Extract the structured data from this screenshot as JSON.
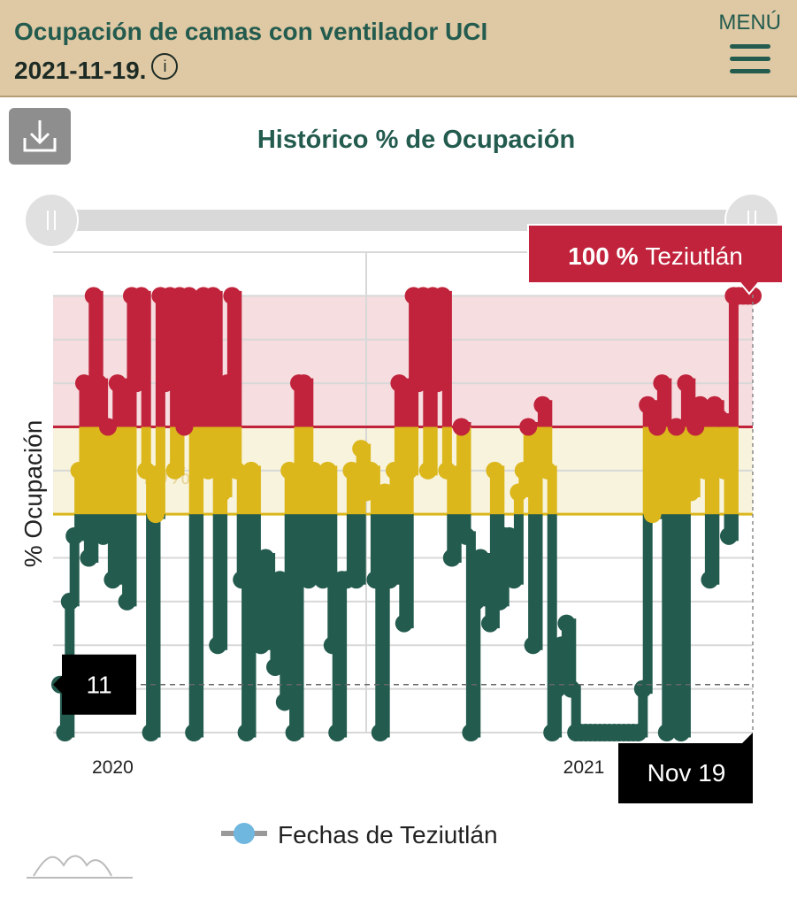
{
  "header": {
    "title": "Ocupación de camas con ventilador UCI",
    "date": "2021-11-19.",
    "info_icon": "info-icon",
    "menu_label": "MENÚ",
    "menu_icon": "hamburger-icon"
  },
  "download_icon": "download-icon",
  "chart_data": {
    "type": "line",
    "title": "Histórico % de Ocupación",
    "ylabel": "% Ocupación",
    "ylim": [
      0,
      110
    ],
    "grid": true,
    "zones": [
      {
        "from": 0,
        "to": 50,
        "color": "#235b4e"
      },
      {
        "from": 50,
        "to": 70,
        "color": "#dbb71c"
      },
      {
        "from": 70,
        "to": 110,
        "color": "#c0233b"
      }
    ],
    "band_fill": {
      "yellow": "#f8f3dc",
      "red": "#f5dde0"
    },
    "band_label": "de 70%",
    "x_ticks": [
      {
        "label": "2020",
        "index": 11
      },
      {
        "label": "2021",
        "index": 133
      }
    ],
    "series": [
      {
        "name": "Fechas de Teziutlán",
        "values": [
          11,
          0,
          30,
          45,
          60,
          80,
          40,
          100,
          80,
          45,
          70,
          35,
          80,
          60,
          30,
          100,
          80,
          100,
          60,
          0,
          50,
          100,
          80,
          100,
          60,
          100,
          70,
          100,
          0,
          80,
          100,
          60,
          100,
          20,
          55,
          80,
          100,
          60,
          35,
          0,
          60,
          35,
          20,
          40,
          30,
          15,
          35,
          7,
          60,
          0,
          80,
          80,
          35,
          60,
          55,
          35,
          60,
          20,
          0,
          35,
          35,
          60,
          35,
          65,
          55,
          60,
          35,
          0,
          55,
          35,
          60,
          80,
          25,
          60,
          100,
          80,
          100,
          60,
          100,
          80,
          100,
          60,
          40,
          55,
          70,
          45,
          0,
          30,
          40,
          35,
          25,
          60,
          30,
          45,
          45,
          35,
          55,
          60,
          70,
          20,
          65,
          75,
          60,
          0,
          10,
          20,
          25,
          10,
          0,
          0,
          0,
          0,
          0,
          0,
          0,
          0,
          0,
          0,
          0,
          0,
          0,
          0,
          10,
          75,
          50,
          70,
          80,
          0,
          60,
          70,
          0,
          80,
          55,
          70,
          75,
          60,
          35,
          75,
          72,
          60,
          45,
          100,
          100,
          100,
          100,
          100
        ]
      }
    ],
    "tooltip_value": "100 %",
    "tooltip_name": "Teziutlán",
    "crosshair_y": "11",
    "crosshair_x": "Nov 19"
  },
  "legend": {
    "label": "Fechas de Teziutlán"
  }
}
